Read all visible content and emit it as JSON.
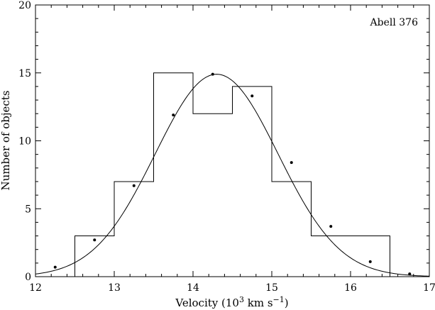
{
  "chart_data": {
    "type": "bar",
    "annotation": "Abell 376",
    "xlabel": {
      "prefix": "Velocity (10",
      "sup1": "3",
      "mid": " km s",
      "sup2": "−1",
      "suffix": ")"
    },
    "ylabel": "Number of objects",
    "xlim": [
      12,
      17
    ],
    "ylim": [
      0,
      20
    ],
    "xticks": [
      "12",
      "13",
      "14",
      "15",
      "16",
      "17"
    ],
    "yticks": [
      "0",
      "5",
      "10",
      "15",
      "20"
    ],
    "histogram": {
      "bin_edges": [
        12.5,
        13.0,
        13.5,
        14.0,
        14.5,
        15.0,
        15.5,
        16.0,
        16.5
      ],
      "counts": [
        3,
        7,
        15,
        12,
        14,
        7,
        3,
        3
      ]
    },
    "gaussian_fit": {
      "mean": 14.3,
      "sigma": 0.78,
      "amplitude": 14.9,
      "x_range": [
        12.0,
        17.0
      ]
    },
    "fit_points": {
      "x": [
        12.25,
        12.75,
        13.25,
        13.75,
        14.25,
        14.75,
        15.25,
        15.75,
        16.25,
        16.75
      ],
      "y": [
        0.7,
        2.7,
        6.7,
        11.9,
        14.9,
        13.3,
        8.4,
        3.7,
        1.1,
        0.2
      ]
    },
    "grid": false,
    "legend": "none"
  }
}
